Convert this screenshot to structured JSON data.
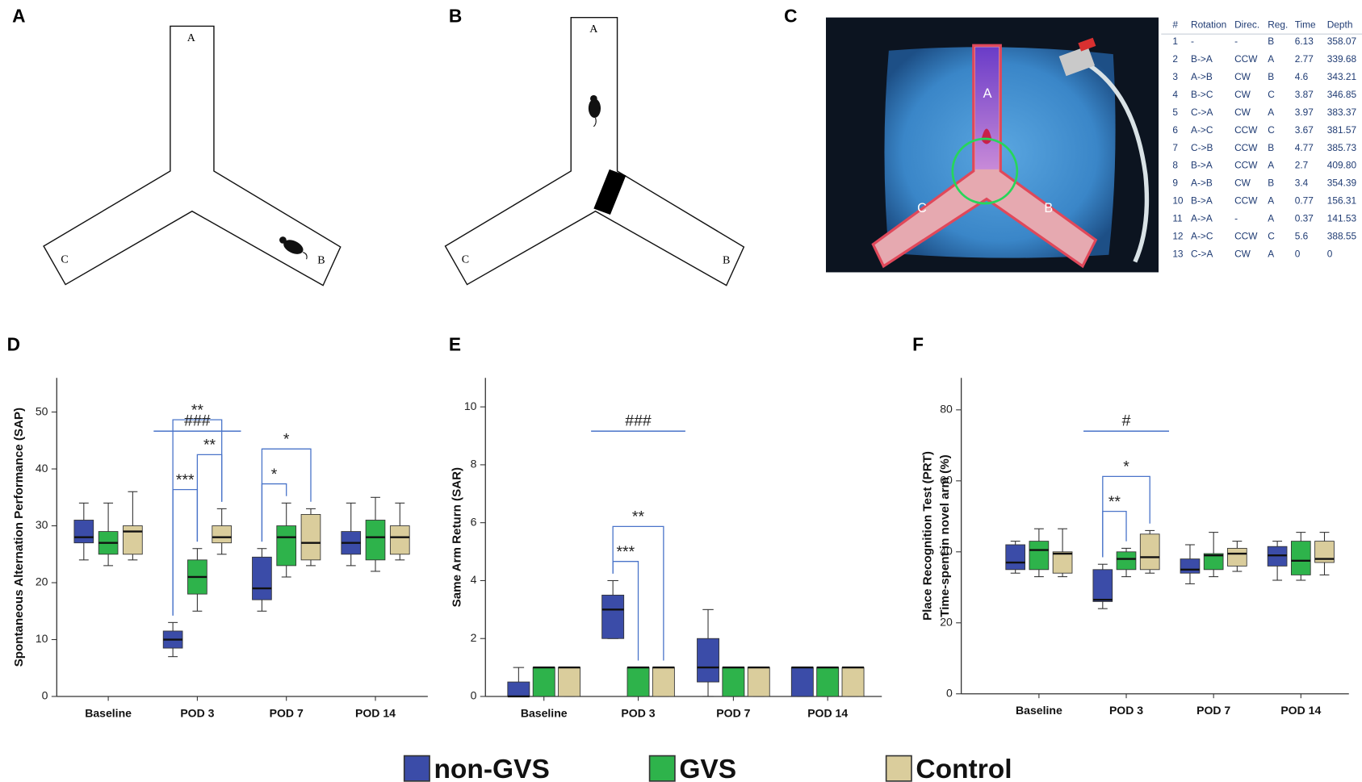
{
  "panel_labels": [
    "A",
    "B",
    "C",
    "D",
    "E",
    "F"
  ],
  "maze_a": {
    "labels": [
      "A",
      "B",
      "C"
    ]
  },
  "maze_b": {
    "labels": [
      "A",
      "B",
      "C"
    ]
  },
  "photo": {
    "labels": [
      "A",
      "C",
      "B"
    ]
  },
  "table_c": {
    "header": [
      "#",
      "Rotation",
      "Direc.",
      "Reg.",
      "Time",
      "Depth"
    ],
    "rows": [
      [
        "1",
        "-",
        "-",
        "B",
        "6.13",
        "358.07"
      ],
      [
        "2",
        "B->A",
        "CCW",
        "A",
        "2.77",
        "339.68"
      ],
      [
        "3",
        "A->B",
        "CW",
        "B",
        "4.6",
        "343.21"
      ],
      [
        "4",
        "B->C",
        "CW",
        "C",
        "3.87",
        "346.85"
      ],
      [
        "5",
        "C->A",
        "CW",
        "A",
        "3.97",
        "383.37"
      ],
      [
        "6",
        "A->C",
        "CCW",
        "C",
        "3.67",
        "381.57"
      ],
      [
        "7",
        "C->B",
        "CCW",
        "B",
        "4.77",
        "385.73"
      ],
      [
        "8",
        "B->A",
        "CCW",
        "A",
        "2.7",
        "409.80"
      ],
      [
        "9",
        "A->B",
        "CW",
        "B",
        "3.4",
        "354.39"
      ],
      [
        "10",
        "B->A",
        "CCW",
        "A",
        "0.77",
        "156.31"
      ],
      [
        "11",
        "A->A",
        "-",
        "A",
        "0.37",
        "141.53"
      ],
      [
        "12",
        "A->C",
        "CCW",
        "C",
        "5.6",
        "388.55"
      ],
      [
        "13",
        "C->A",
        "CW",
        "A",
        "0",
        "0"
      ]
    ]
  },
  "chart_data": [
    {
      "type": "box",
      "y_label": "Spontaneous Alternation Performance (SAP)",
      "categories": [
        "Baseline",
        "POD 3",
        "POD 7",
        "POD 14"
      ],
      "ylim": [
        0,
        56
      ],
      "yticks": [
        0,
        10,
        20,
        30,
        40,
        50
      ],
      "series": [
        {
          "name": "non-GVS",
          "color": "#3b4ca8",
          "values": [
            {
              "min": 24,
              "q1": 27,
              "median": 28,
              "q3": 31,
              "max": 34
            },
            {
              "min": 7,
              "q1": 8.5,
              "median": 10,
              "q3": 11.5,
              "max": 13
            },
            {
              "min": 15,
              "q1": 17,
              "median": 19,
              "q3": 24.5,
              "max": 26
            },
            {
              "min": 23,
              "q1": 25,
              "median": 27,
              "q3": 29,
              "max": 34
            }
          ]
        },
        {
          "name": "GVS",
          "color": "#2eb34b",
          "values": [
            {
              "min": 23,
              "q1": 25,
              "median": 27,
              "q3": 29,
              "max": 34
            },
            {
              "min": 15,
              "q1": 18,
              "median": 21,
              "q3": 24,
              "max": 26
            },
            {
              "min": 21,
              "q1": 23,
              "median": 28,
              "q3": 30,
              "max": 34
            },
            {
              "min": 22,
              "q1": 24,
              "median": 28,
              "q3": 31,
              "max": 35
            }
          ]
        },
        {
          "name": "Control",
          "color": "#dacd9c",
          "values": [
            {
              "min": 24,
              "q1": 25,
              "median": 29,
              "q3": 30,
              "max": 36
            },
            {
              "min": 25,
              "q1": 27,
              "median": 28,
              "q3": 30,
              "max": 33
            },
            {
              "min": 23,
              "q1": 24,
              "median": 27,
              "q3": 32,
              "max": 33
            },
            {
              "min": 24,
              "q1": 25,
              "median": 28,
              "q3": 30,
              "max": 34
            }
          ]
        }
      ],
      "brackets": [
        {
          "text": "***",
          "category": "POD 3",
          "between": [
            "non-GVS",
            "GVS"
          ]
        },
        {
          "text": "**",
          "category": "POD 3",
          "between": [
            "GVS",
            "Control"
          ]
        },
        {
          "text": "**",
          "category": "POD 3",
          "between": [
            "non-GVS",
            "Control"
          ]
        },
        {
          "text": "*",
          "category": "POD 7",
          "between": [
            "non-GVS",
            "GVS"
          ]
        },
        {
          "text": "*",
          "category": "POD 7",
          "between": [
            "non-GVS",
            "Control"
          ]
        }
      ],
      "group_marks": [
        {
          "text": "###",
          "category": "POD 3"
        }
      ]
    },
    {
      "type": "box",
      "y_label": "Same Arm Return (SAR)",
      "categories": [
        "Baseline",
        "POD 3",
        "POD 7",
        "POD 14"
      ],
      "ylim": [
        0,
        11
      ],
      "yticks": [
        0,
        2,
        4,
        6,
        8,
        10
      ],
      "series": [
        {
          "name": "non-GVS",
          "color": "#3b4ca8",
          "values": [
            {
              "min": 0,
              "q1": 0,
              "median": 0,
              "q3": 0.5,
              "max": 1
            },
            {
              "min": 2,
              "q1": 2,
              "median": 3,
              "q3": 3.5,
              "max": 4
            },
            {
              "min": 0,
              "q1": 0.5,
              "median": 1,
              "q3": 2,
              "max": 3
            },
            {
              "min": 0,
              "q1": 0,
              "median": 1,
              "q3": 1,
              "max": 1
            }
          ]
        },
        {
          "name": "GVS",
          "color": "#2eb34b",
          "values": [
            {
              "min": 0,
              "q1": 0,
              "median": 1,
              "q3": 1,
              "max": 1
            },
            {
              "min": 0,
              "q1": 0,
              "median": 1,
              "q3": 1,
              "max": 1
            },
            {
              "min": 0,
              "q1": 0,
              "median": 1,
              "q3": 1,
              "max": 1
            },
            {
              "min": 0,
              "q1": 0,
              "median": 1,
              "q3": 1,
              "max": 1
            }
          ]
        },
        {
          "name": "Control",
          "color": "#dacd9c",
          "values": [
            {
              "min": 0,
              "q1": 0,
              "median": 1,
              "q3": 1,
              "max": 1
            },
            {
              "min": 0,
              "q1": 0,
              "median": 1,
              "q3": 1,
              "max": 1
            },
            {
              "min": 0,
              "q1": 0,
              "median": 1,
              "q3": 1,
              "max": 1
            },
            {
              "min": 0,
              "q1": 0,
              "median": 1,
              "q3": 1,
              "max": 1
            }
          ]
        }
      ],
      "brackets": [
        {
          "text": "***",
          "category": "POD 3",
          "between": [
            "non-GVS",
            "GVS"
          ]
        },
        {
          "text": "**",
          "category": "POD 3",
          "between": [
            "non-GVS",
            "Control"
          ]
        }
      ],
      "group_marks": [
        {
          "text": "###",
          "category": "POD 3"
        }
      ]
    },
    {
      "type": "box",
      "y_label": [
        "Place Recognition Test (PRT)",
        "Time-spent in novel arm (%)"
      ],
      "categories": [
        "Baseline",
        "POD 3",
        "POD 7",
        "POD 14"
      ],
      "ylim": [
        0,
        89
      ],
      "yticks": [
        0,
        20,
        40,
        60,
        80
      ],
      "series": [
        {
          "name": "non-GVS",
          "color": "#3b4ca8",
          "values": [
            {
              "min": 34,
              "q1": 35,
              "median": 37,
              "q3": 42,
              "max": 43
            },
            {
              "min": 24,
              "q1": 26,
              "median": 26.5,
              "q3": 35,
              "max": 36.5
            },
            {
              "min": 31,
              "q1": 34,
              "median": 35,
              "q3": 38,
              "max": 42
            },
            {
              "min": 32,
              "q1": 36,
              "median": 39,
              "q3": 41.5,
              "max": 43
            }
          ]
        },
        {
          "name": "GVS",
          "color": "#2eb34b",
          "values": [
            {
              "min": 33,
              "q1": 35,
              "median": 40.5,
              "q3": 43,
              "max": 46.5
            },
            {
              "min": 33,
              "q1": 35,
              "median": 38,
              "q3": 40,
              "max": 41
            },
            {
              "min": 33,
              "q1": 35,
              "median": 39,
              "q3": 39.5,
              "max": 45.5
            },
            {
              "min": 32,
              "q1": 33.5,
              "median": 37.5,
              "q3": 43,
              "max": 45.5
            }
          ]
        },
        {
          "name": "Control",
          "color": "#dacd9c",
          "values": [
            {
              "min": 33,
              "q1": 34,
              "median": 39.5,
              "q3": 40,
              "max": 46.5
            },
            {
              "min": 34,
              "q1": 35,
              "median": 38.5,
              "q3": 45,
              "max": 46
            },
            {
              "min": 34.5,
              "q1": 36,
              "median": 39.5,
              "q3": 41,
              "max": 43
            },
            {
              "min": 33.5,
              "q1": 37,
              "median": 38,
              "q3": 43,
              "max": 45.5
            }
          ]
        }
      ],
      "brackets": [
        {
          "text": "**",
          "category": "POD 3",
          "between": [
            "non-GVS",
            "GVS"
          ]
        },
        {
          "text": "*",
          "category": "POD 3",
          "between": [
            "non-GVS",
            "Control"
          ]
        }
      ],
      "group_marks": [
        {
          "text": "#",
          "category": "POD 3"
        }
      ]
    }
  ]
}
